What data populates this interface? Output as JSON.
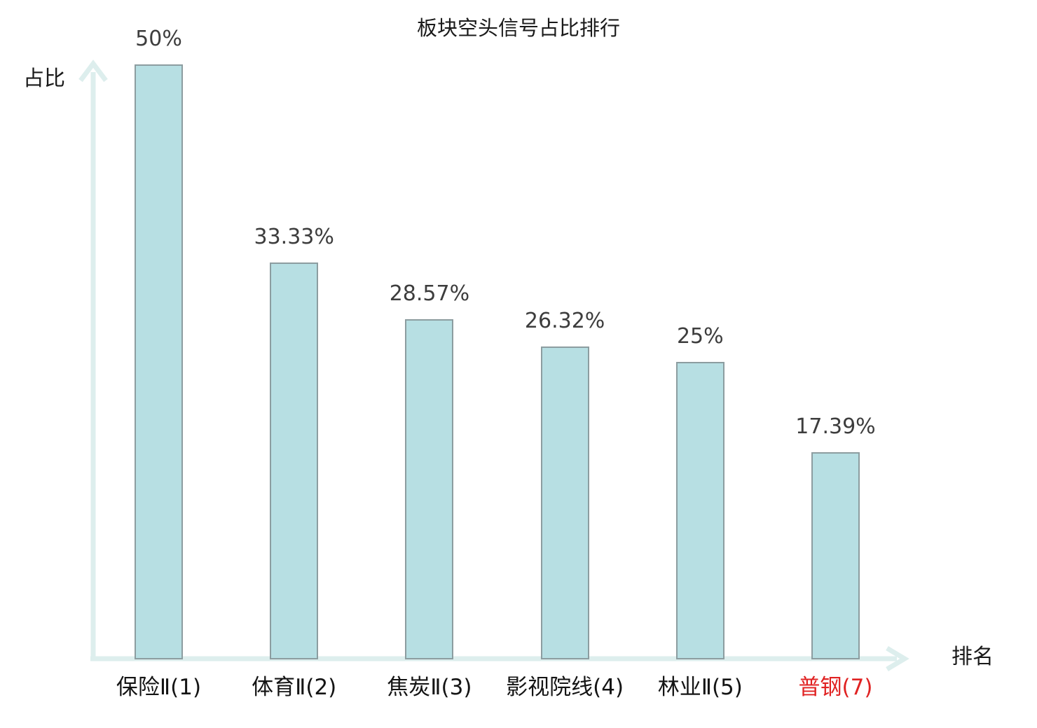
{
  "chart_data": {
    "type": "bar",
    "title": "板块空头信号占比排行",
    "xlabel": "排名",
    "ylabel": "占比",
    "categories": [
      "保险Ⅱ(1)",
      "体育Ⅱ(2)",
      "焦炭Ⅱ(3)",
      "影视院线(4)",
      "林业Ⅱ(5)",
      "普钢(7)"
    ],
    "values": [
      50,
      33.33,
      28.57,
      26.32,
      25,
      17.39
    ],
    "value_labels": [
      "50%",
      "33.33%",
      "28.57%",
      "26.32%",
      "25%",
      "17.39%"
    ],
    "highlighted_category_index": 5,
    "ylim": [
      0,
      50
    ],
    "grid": false,
    "legend": null,
    "colors": {
      "bar_fill": "#b7dfe3",
      "bar_border": "#8c9da0",
      "axis": "#ddeeed",
      "value_label": "#3d3d3d",
      "category_label": "#141414",
      "highlight_label": "#e02222",
      "title": "#1a1a1a"
    }
  }
}
